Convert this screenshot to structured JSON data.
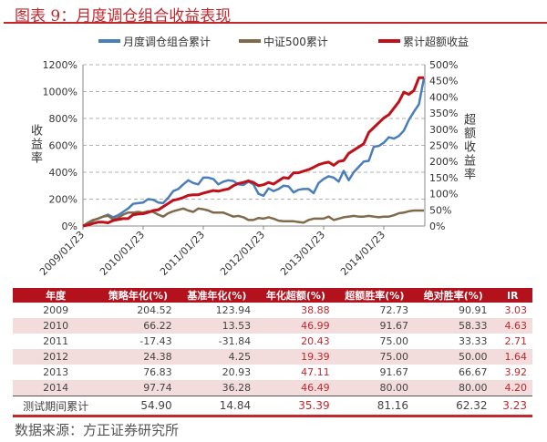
{
  "title": "图表 9：月度调仓组合收益表现",
  "source": "数据来源：方正证券研究所",
  "chart_data": {
    "type": "line",
    "start": "2009/01",
    "frequency": "monthly",
    "x_ticks": [
      "2009/01/23",
      "2010/01/23",
      "2011/01/23",
      "2012/01/23",
      "2013/01/23",
      "2014/01/23"
    ],
    "ylabel": "收益率",
    "y2label": "超额收益率",
    "ylim": [
      0,
      1200
    ],
    "y_ticks": [
      "0%",
      "200%",
      "400%",
      "600%",
      "800%",
      "1000%",
      "1200%"
    ],
    "y2lim": [
      0,
      500
    ],
    "y2_ticks": [
      "0%",
      "50%",
      "100%",
      "150%",
      "200%",
      "250%",
      "300%",
      "350%",
      "400%",
      "450%",
      "500%"
    ],
    "grid": "horizontal dashed",
    "legend": "top",
    "series": [
      {
        "name": "月度调仓组合累计",
        "axis": "left",
        "color": "#4a7ebb",
        "values": [
          0,
          20,
          40,
          55,
          70,
          85,
          65,
          80,
          105,
          130,
          165,
          170,
          175,
          200,
          195,
          175,
          170,
          210,
          260,
          275,
          310,
          340,
          320,
          310,
          360,
          360,
          350,
          310,
          330,
          340,
          335,
          310,
          305,
          330,
          310,
          240,
          225,
          280,
          260,
          275,
          300,
          295,
          250,
          270,
          275,
          275,
          245,
          320,
          350,
          370,
          360,
          330,
          410,
          340,
          400,
          440,
          480,
          485,
          590,
          595,
          620,
          660,
          650,
          670,
          710,
          790,
          850,
          905,
          1100
        ]
      },
      {
        "name": "中证500累计",
        "axis": "left",
        "color": "#7f6a4a",
        "values": [
          0,
          25,
          45,
          55,
          70,
          75,
          50,
          60,
          85,
          100,
          100,
          105,
          100,
          110,
          105,
          85,
          70,
          95,
          110,
          120,
          130,
          115,
          105,
          130,
          125,
          115,
          100,
          100,
          100,
          85,
          70,
          75,
          65,
          45,
          45,
          60,
          55,
          65,
          55,
          40,
          35,
          35,
          35,
          30,
          25,
          45,
          55,
          55,
          55,
          70,
          45,
          55,
          65,
          70,
          75,
          70,
          70,
          75,
          70,
          65,
          70,
          70,
          80,
          95,
          100,
          110,
          115,
          115,
          115
        ]
      },
      {
        "name": "累计超额收益",
        "axis": "right",
        "color": "#c0101a",
        "values": [
          0,
          3,
          8,
          12,
          12,
          10,
          17,
          20,
          23,
          23,
          35,
          37,
          38,
          42,
          48,
          50,
          60,
          70,
          80,
          83,
          88,
          95,
          97,
          97,
          102,
          106,
          110,
          108,
          112,
          115,
          125,
          132,
          135,
          140,
          135,
          125,
          128,
          135,
          130,
          140,
          150,
          148,
          165,
          165,
          170,
          175,
          182,
          190,
          195,
          198,
          188,
          200,
          203,
          225,
          235,
          245,
          255,
          290,
          305,
          320,
          335,
          345,
          365,
          385,
          415,
          408,
          420,
          460,
          460
        ]
      }
    ]
  },
  "table": {
    "headers": [
      "年度",
      "策略年化(%)",
      "基准年化(%)",
      "年化超额(%)",
      "超额胜率(%)",
      "绝对胜率(%)",
      "IR"
    ],
    "rows": [
      [
        "2009",
        "204.52",
        "123.94",
        "38.88",
        "72.73",
        "90.91",
        "3.03"
      ],
      [
        "2010",
        "66.22",
        "13.53",
        "46.99",
        "91.67",
        "58.33",
        "4.63"
      ],
      [
        "2011",
        "-17.43",
        "-31.84",
        "20.43",
        "75.00",
        "33.33",
        "2.71"
      ],
      [
        "2012",
        "24.38",
        "4.25",
        "19.39",
        "75.00",
        "50.00",
        "1.64"
      ],
      [
        "2013",
        "76.83",
        "20.93",
        "47.11",
        "91.67",
        "66.67",
        "3.92"
      ],
      [
        "2014",
        "97.74",
        "36.28",
        "46.49",
        "80.00",
        "80.00",
        "4.20"
      ]
    ],
    "total": [
      "测试期间累计",
      "54.90",
      "14.84",
      "35.39",
      "81.16",
      "62.32",
      "3.23"
    ]
  }
}
